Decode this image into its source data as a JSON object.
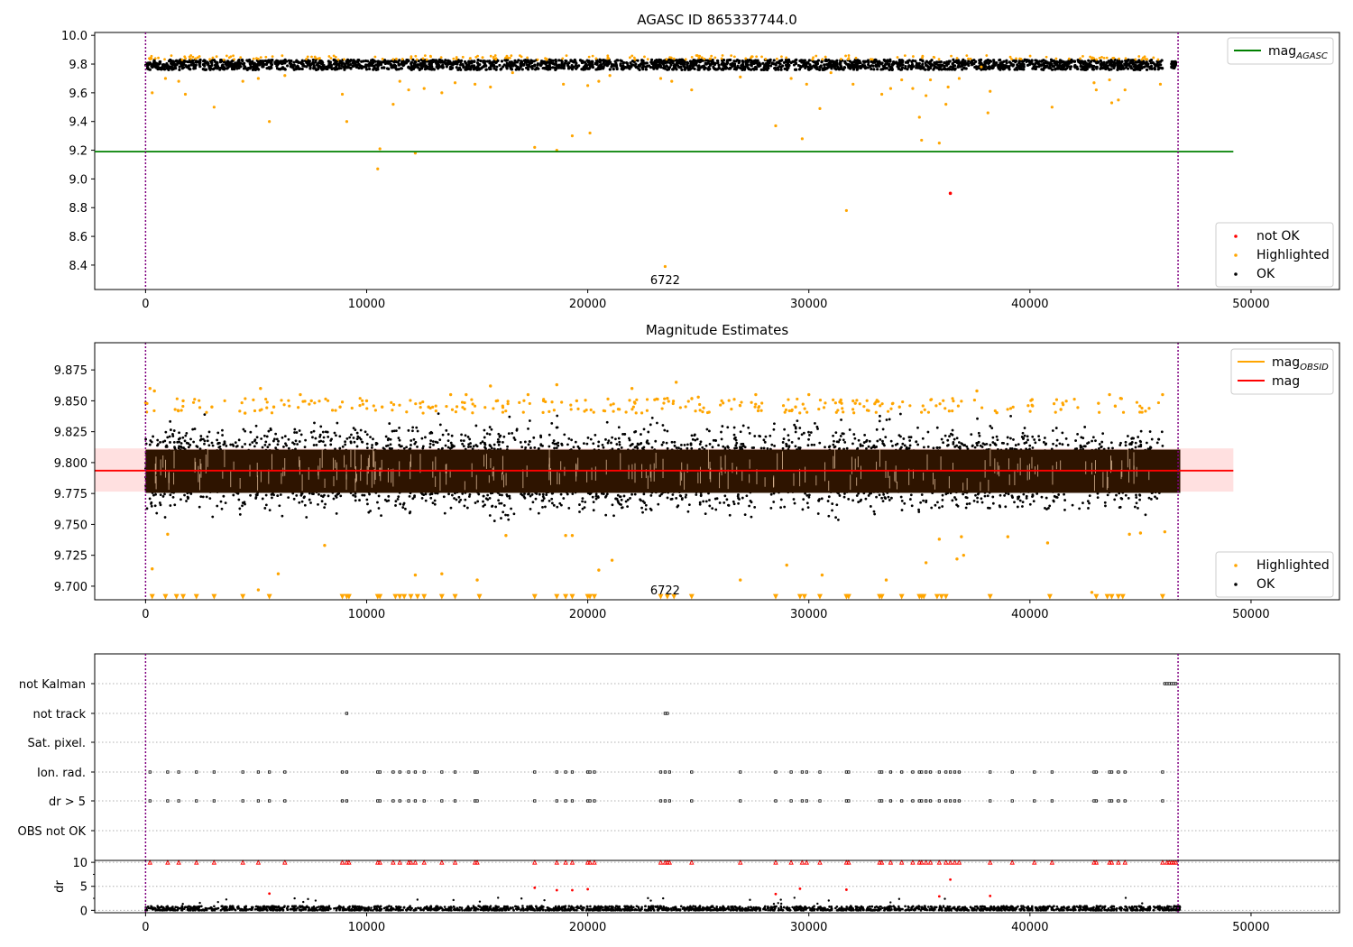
{
  "chart_data": [
    {
      "type": "scatter",
      "title": "AGASC ID 865337744.0",
      "xlim": [
        -2300,
        54000
      ],
      "ylim": [
        8.23,
        10.02
      ],
      "x_ticks": [
        "0",
        "10000",
        "20000",
        "30000",
        "40000",
        "50000"
      ],
      "x_tick_values": [
        0,
        10000,
        20000,
        30000,
        40000,
        50000
      ],
      "y_ticks": [
        "8.4",
        "8.6",
        "8.8",
        "9.0",
        "9.2",
        "9.4",
        "9.6",
        "9.8",
        "10.0"
      ],
      "y_tick_values": [
        8.4,
        8.6,
        8.8,
        9.0,
        9.2,
        9.4,
        9.6,
        9.8,
        10.0
      ],
      "vlines": [
        0,
        46700
      ],
      "hline": {
        "name": "mag",
        "subscript": "AGASC",
        "value": 9.19,
        "x_range": [
          -2300,
          49200
        ],
        "color": "#008000"
      },
      "annotation": {
        "text": "6722",
        "x": 23500,
        "y": 8.3
      },
      "ok_band": {
        "x_range": [
          0,
          46000
        ],
        "y_range": [
          9.76,
          9.83
        ],
        "extra_x": [
          46400,
          46600
        ]
      },
      "highlighted_points": [
        [
          300,
          9.6
        ],
        [
          900,
          9.7
        ],
        [
          1500,
          9.68
        ],
        [
          1800,
          9.59
        ],
        [
          3100,
          9.5
        ],
        [
          4400,
          9.68
        ],
        [
          5100,
          9.7
        ],
        [
          5600,
          9.4
        ],
        [
          6300,
          9.72
        ],
        [
          8900,
          9.59
        ],
        [
          9100,
          9.4
        ],
        [
          10500,
          9.07
        ],
        [
          10600,
          9.21
        ],
        [
          11200,
          9.52
        ],
        [
          11500,
          9.68
        ],
        [
          11900,
          9.62
        ],
        [
          12200,
          9.18
        ],
        [
          12600,
          9.63
        ],
        [
          13400,
          9.6
        ],
        [
          14000,
          9.67
        ],
        [
          14900,
          9.66
        ],
        [
          15600,
          9.64
        ],
        [
          16600,
          9.74
        ],
        [
          17600,
          9.22
        ],
        [
          18600,
          9.2
        ],
        [
          18900,
          9.66
        ],
        [
          19300,
          9.3
        ],
        [
          20000,
          9.65
        ],
        [
          20100,
          9.32
        ],
        [
          20500,
          9.68
        ],
        [
          21000,
          9.72
        ],
        [
          23300,
          9.7
        ],
        [
          23800,
          9.68
        ],
        [
          24700,
          9.62
        ],
        [
          26900,
          9.71
        ],
        [
          28500,
          9.37
        ],
        [
          29200,
          9.7
        ],
        [
          29700,
          9.28
        ],
        [
          29900,
          9.66
        ],
        [
          30500,
          9.49
        ],
        [
          31000,
          9.74
        ],
        [
          31700,
          8.78
        ],
        [
          32000,
          9.66
        ],
        [
          33300,
          9.59
        ],
        [
          33700,
          9.63
        ],
        [
          34200,
          9.69
        ],
        [
          34700,
          9.63
        ],
        [
          35000,
          9.43
        ],
        [
          35100,
          9.27
        ],
        [
          35300,
          9.58
        ],
        [
          35500,
          9.69
        ],
        [
          35900,
          9.25
        ],
        [
          36200,
          9.52
        ],
        [
          36300,
          9.64
        ],
        [
          36800,
          9.7
        ],
        [
          37800,
          9.78
        ],
        [
          38100,
          9.46
        ],
        [
          38200,
          9.61
        ],
        [
          41000,
          9.5
        ],
        [
          42900,
          9.67
        ],
        [
          43000,
          9.62
        ],
        [
          43600,
          9.69
        ],
        [
          43700,
          9.53
        ],
        [
          44000,
          9.55
        ],
        [
          44300,
          9.62
        ],
        [
          45900,
          9.66
        ],
        [
          23500,
          8.39
        ]
      ],
      "not_ok_points": [
        [
          36400,
          8.9
        ]
      ],
      "legends": [
        {
          "placement": "upper-right",
          "entries": [
            {
              "label": "mag",
              "subscript": "AGASC",
              "marker": "line",
              "color": "#008000"
            }
          ]
        },
        {
          "placement": "lower-right",
          "entries": [
            {
              "label": "not OK",
              "marker": "dot",
              "color": "#ff0000"
            },
            {
              "label": "Highlighted",
              "marker": "dot",
              "color": "#ffa500"
            },
            {
              "label": "OK",
              "marker": "dot",
              "color": "#000000"
            }
          ]
        }
      ]
    },
    {
      "type": "scatter",
      "title": "Magnitude Estimates",
      "xlim": [
        -2300,
        54000
      ],
      "ylim": [
        9.689,
        9.897
      ],
      "x_ticks": [
        "0",
        "10000",
        "20000",
        "30000",
        "40000",
        "50000"
      ],
      "x_tick_values": [
        0,
        10000,
        20000,
        30000,
        40000,
        50000
      ],
      "y_ticks": [
        "9.700",
        "9.725",
        "9.750",
        "9.775",
        "9.800",
        "9.825",
        "9.850",
        "9.875"
      ],
      "y_tick_values": [
        9.7,
        9.725,
        9.75,
        9.775,
        9.8,
        9.825,
        9.85,
        9.875
      ],
      "vlines": [
        0,
        46700
      ],
      "mean_line": {
        "name": "mag",
        "value": 9.7935,
        "x_range": [
          -2300,
          49200
        ],
        "color": "#ff0000"
      },
      "mean_band": {
        "y_range": [
          9.7765,
          9.8115
        ],
        "x_range": [
          -2300,
          49200
        ],
        "color": "#ffcccc"
      },
      "obsid_band": {
        "y_range": [
          9.7755,
          9.8105
        ],
        "x_range": [
          0,
          46800
        ],
        "color": "#2e1400"
      },
      "annotation": {
        "text": "6722",
        "x": 23500,
        "y": 9.697
      },
      "ok_scatter_range": {
        "x_range": [
          0,
          46000
        ],
        "y_range": [
          9.75,
          9.84
        ]
      },
      "highlighted_points": [
        [
          200,
          9.86
        ],
        [
          300,
          9.714
        ],
        [
          400,
          9.858
        ],
        [
          1000,
          9.742
        ],
        [
          1700,
          9.85
        ],
        [
          3000,
          9.845
        ],
        [
          4500,
          9.84
        ],
        [
          5100,
          9.697
        ],
        [
          5200,
          9.86
        ],
        [
          5800,
          9.845
        ],
        [
          6000,
          9.71
        ],
        [
          7000,
          9.855
        ],
        [
          7500,
          9.85
        ],
        [
          8100,
          9.733
        ],
        [
          8800,
          9.845
        ],
        [
          10000,
          9.85
        ],
        [
          10700,
          9.845
        ],
        [
          12200,
          9.709
        ],
        [
          12800,
          9.845
        ],
        [
          13400,
          9.71
        ],
        [
          13800,
          9.855
        ],
        [
          14500,
          9.855
        ],
        [
          15000,
          9.705
        ],
        [
          15600,
          9.862
        ],
        [
          16300,
          9.741
        ],
        [
          17300,
          9.855
        ],
        [
          18000,
          9.85
        ],
        [
          18600,
          9.863
        ],
        [
          19000,
          9.741
        ],
        [
          19300,
          9.741
        ],
        [
          19500,
          9.85
        ],
        [
          20500,
          9.713
        ],
        [
          21100,
          9.721
        ],
        [
          22000,
          9.86
        ],
        [
          23600,
          9.852
        ],
        [
          24000,
          9.865
        ],
        [
          25000,
          9.853
        ],
        [
          26900,
          9.705
        ],
        [
          27600,
          9.855
        ],
        [
          29000,
          9.717
        ],
        [
          29400,
          9.845
        ],
        [
          30000,
          9.855
        ],
        [
          30600,
          9.709
        ],
        [
          31400,
          9.849
        ],
        [
          32100,
          9.848
        ],
        [
          33500,
          9.705
        ],
        [
          34100,
          9.845
        ],
        [
          35300,
          9.719
        ],
        [
          35900,
          9.738
        ],
        [
          36700,
          9.722
        ],
        [
          36900,
          9.74
        ],
        [
          37000,
          9.725
        ],
        [
          37600,
          9.858
        ],
        [
          39000,
          9.74
        ],
        [
          40100,
          9.851
        ],
        [
          40800,
          9.735
        ],
        [
          41400,
          9.843
        ],
        [
          42800,
          9.695
        ],
        [
          43100,
          9.848
        ],
        [
          43600,
          9.855
        ],
        [
          44100,
          9.852
        ],
        [
          44500,
          9.742
        ],
        [
          45000,
          9.743
        ],
        [
          46000,
          9.855
        ],
        [
          46100,
          9.744
        ]
      ],
      "triangle_x": [
        300,
        900,
        1400,
        1700,
        2300,
        3100,
        4400,
        5600,
        8900,
        9100,
        9200,
        10500,
        10600,
        11300,
        11500,
        11700,
        12000,
        12300,
        12600,
        13400,
        14000,
        15100,
        17600,
        18600,
        19000,
        19300,
        20000,
        20100,
        20300,
        23300,
        23600,
        23900,
        24700,
        28500,
        29600,
        29800,
        30500,
        31700,
        31800,
        33200,
        33300,
        34200,
        35000,
        35100,
        35200,
        35800,
        36000,
        36200,
        38200,
        40900,
        43000,
        43500,
        43700,
        44000,
        44200,
        46000
      ],
      "triangle_y": 9.6915,
      "legends": [
        {
          "placement": "upper-right",
          "entries": [
            {
              "label": "mag",
              "subscript": "OBSID",
              "marker": "line",
              "color": "#ffa500"
            },
            {
              "label": "mag",
              "subscript": "",
              "marker": "line",
              "color": "#ff0000"
            }
          ]
        },
        {
          "placement": "lower-right",
          "entries": [
            {
              "label": "Highlighted",
              "marker": "dot",
              "color": "#ffa500"
            },
            {
              "label": "OK",
              "marker": "dot",
              "color": "#000000"
            }
          ]
        }
      ]
    },
    {
      "type": "scatter",
      "title": "",
      "xlim": [
        -2300,
        54000
      ],
      "categories": [
        "not Kalman",
        "not track",
        "Sat. pixel.",
        "Ion. rad.",
        "dr > 5",
        "OBS not OK"
      ],
      "flags": {
        "not Kalman": [
          46100,
          46200,
          46300,
          46400,
          46500,
          46600
        ],
        "not track": [
          9100,
          23500,
          23600
        ],
        "Sat. pixel.": [],
        "Ion. rad.": [
          200,
          1000,
          1500,
          2300,
          3100,
          4400,
          5100,
          5600,
          6300,
          8900,
          9100,
          10500,
          10600,
          11200,
          11500,
          11900,
          12200,
          12600,
          13400,
          14000,
          14900,
          15000,
          17600,
          18600,
          19000,
          19300,
          20000,
          20100,
          20300,
          23300,
          23500,
          23700,
          24700,
          26900,
          28500,
          29200,
          29700,
          29900,
          30500,
          31700,
          31800,
          33200,
          33300,
          33700,
          34200,
          34700,
          35000,
          35100,
          35300,
          35500,
          35900,
          36200,
          36400,
          36600,
          36800,
          38200,
          39200,
          40200,
          41000,
          42900,
          43000,
          43600,
          43700,
          44000,
          44300,
          46000
        ],
        "dr > 5": [
          200,
          1000,
          1500,
          2300,
          3100,
          4400,
          5100,
          5600,
          6300,
          8900,
          9100,
          10500,
          10600,
          11200,
          11500,
          11900,
          12200,
          12600,
          13400,
          14000,
          14900,
          15000,
          17600,
          18600,
          19000,
          19300,
          20000,
          20100,
          20300,
          23300,
          23500,
          23700,
          24700,
          26900,
          28500,
          29200,
          29700,
          29900,
          30500,
          31700,
          31800,
          33200,
          33300,
          33700,
          34200,
          34700,
          35000,
          35100,
          35300,
          35500,
          35900,
          36200,
          36400,
          36600,
          36800,
          38200,
          39200,
          40200,
          41000,
          42900,
          43000,
          43600,
          43700,
          44000,
          44300,
          46000
        ],
        "OBS not OK": []
      }
    },
    {
      "type": "scatter",
      "title": "",
      "ylabel": "dr",
      "xlim": [
        -2300,
        54000
      ],
      "ylim": [
        -0.5,
        10.4
      ],
      "x_ticks": [
        "0",
        "10000",
        "20000",
        "30000",
        "40000",
        "50000"
      ],
      "x_tick_values": [
        0,
        10000,
        20000,
        30000,
        40000,
        50000
      ],
      "y_ticks": [
        "0",
        "5",
        "10"
      ],
      "y_tick_values": [
        0,
        5,
        10
      ],
      "capped_value": 10,
      "capped_x": [
        200,
        1000,
        1500,
        2300,
        3100,
        4400,
        5100,
        6300,
        8900,
        9100,
        9200,
        10500,
        10600,
        11200,
        11500,
        11900,
        12000,
        12200,
        12600,
        13400,
        14000,
        14900,
        15000,
        17600,
        18600,
        19000,
        19300,
        20000,
        20100,
        20300,
        23300,
        23500,
        23600,
        23700,
        24700,
        26900,
        28500,
        29200,
        29700,
        29900,
        30500,
        31700,
        31800,
        33200,
        33300,
        33700,
        34200,
        34700,
        35000,
        35100,
        35300,
        35500,
        35900,
        36200,
        36400,
        36600,
        36800,
        38200,
        39200,
        40200,
        41000,
        42900,
        43000,
        43600,
        43700,
        44000,
        44300,
        46000,
        46200,
        46300,
        46400,
        46500,
        46600
      ],
      "outlier_points": [
        [
          5600,
          3.5
        ],
        [
          17600,
          4.7
        ],
        [
          18600,
          4.2
        ],
        [
          19300,
          4.2
        ],
        [
          20000,
          4.4
        ],
        [
          28500,
          3.4
        ],
        [
          29600,
          4.5
        ],
        [
          31700,
          4.3
        ],
        [
          36400,
          6.4
        ],
        [
          35900,
          2.9
        ],
        [
          38200,
          3.0
        ]
      ],
      "base_range": [
        0.0,
        0.9
      ]
    }
  ]
}
